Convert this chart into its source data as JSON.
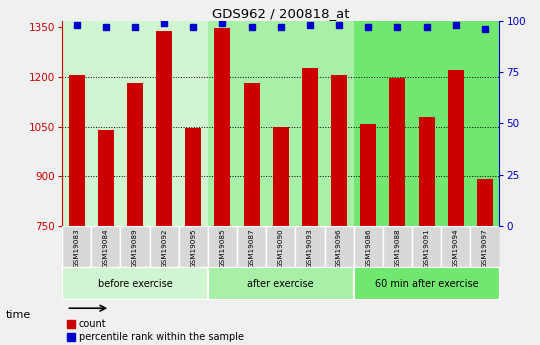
{
  "title": "GDS962 / 200818_at",
  "samples": [
    "GSM19083",
    "GSM19084",
    "GSM19089",
    "GSM19092",
    "GSM19095",
    "GSM19085",
    "GSM19087",
    "GSM19090",
    "GSM19093",
    "GSM19096",
    "GSM19086",
    "GSM19088",
    "GSM19091",
    "GSM19094",
    "GSM19097"
  ],
  "counts": [
    1205,
    1040,
    1183,
    1338,
    1047,
    1347,
    1181,
    1049,
    1226,
    1207,
    1059,
    1196,
    1080,
    1220,
    893
  ],
  "percentile": [
    98,
    97,
    97,
    99,
    97,
    99,
    97,
    97,
    98,
    98,
    97,
    97,
    97,
    98,
    96
  ],
  "groups": [
    {
      "label": "before exercise",
      "start": 0,
      "end": 5,
      "color": "#d0f5d0"
    },
    {
      "label": "after exercise",
      "start": 5,
      "end": 10,
      "color": "#a8f0a8"
    },
    {
      "label": "60 min after exercise",
      "start": 10,
      "end": 15,
      "color": "#70e870"
    }
  ],
  "bar_color": "#cc0000",
  "dot_color": "#0000cc",
  "ylim_left": [
    750,
    1370
  ],
  "ylim_right": [
    0,
    100
  ],
  "yticks_left": [
    750,
    900,
    1050,
    1200,
    1350
  ],
  "yticks_right": [
    0,
    25,
    50,
    75,
    100
  ],
  "grid_values": [
    900,
    1050,
    1200
  ],
  "bar_width": 0.55,
  "bg_color": "#f0f0f0",
  "plot_bg": "#ffffff",
  "sample_bg": "#d8d8d8"
}
